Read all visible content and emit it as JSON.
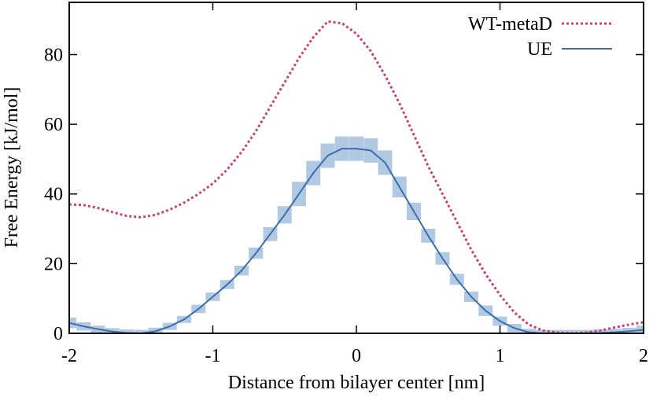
{
  "chart_data": {
    "type": "line",
    "xlabel": "Distance from bilayer center [nm]",
    "ylabel": "Free Energy [kJ/mol]",
    "x": [
      -2,
      -1.9,
      -1.8,
      -1.7,
      -1.6,
      -1.5,
      -1.4,
      -1.3,
      -1.2,
      -1.1,
      -1,
      -0.9,
      -0.8,
      -0.7,
      -0.6,
      -0.5,
      -0.4,
      -0.3,
      -0.2,
      -0.1,
      0,
      0.1,
      0.2,
      0.3,
      0.4,
      0.5,
      0.6,
      0.7,
      0.8,
      0.9,
      1,
      1.1,
      1.2,
      1.3,
      1.4,
      1.5,
      1.6,
      1.7,
      1.8,
      1.9,
      2
    ],
    "series": [
      {
        "name": "WT-metaD",
        "color": "#c8436e",
        "style": "dotted",
        "values": [
          37,
          36.8,
          36,
          34.8,
          33.7,
          33.3,
          34,
          35.5,
          37.5,
          40,
          43,
          47,
          52,
          58,
          65,
          72,
          79,
          85,
          89.5,
          89,
          86,
          81,
          74,
          66,
          57,
          48,
          40,
          32,
          24,
          17,
          11,
          6,
          2.5,
          0.8,
          0.2,
          0,
          0.2,
          0.8,
          1.7,
          2.5,
          3.2
        ]
      },
      {
        "name": "UE",
        "color": "#3c6fa8",
        "style": "solid",
        "error_color": "#a9c3e0",
        "values": [
          3,
          2,
          1.2,
          0.5,
          0.1,
          0,
          0.6,
          2,
          4,
          7,
          10.5,
          14,
          18,
          23,
          28.5,
          34,
          40,
          46,
          51,
          53,
          53,
          52.5,
          49,
          42,
          35,
          28,
          21.5,
          15.5,
          10.5,
          6.5,
          3.5,
          1.5,
          0.3,
          0,
          0,
          0,
          0,
          0.1,
          0.3,
          0.6,
          1
        ],
        "errors": [
          1.5,
          1.2,
          1,
          1,
          1,
          1,
          1,
          1,
          1,
          1.2,
          1.2,
          1.3,
          1.4,
          1.6,
          2,
          2.5,
          3.5,
          3.5,
          3.5,
          3.5,
          3.5,
          3.5,
          3.5,
          3,
          2.5,
          2,
          1.8,
          1.6,
          1.5,
          1.5,
          1.3,
          1.2,
          1,
          1,
          1,
          1,
          1,
          1,
          1,
          1,
          1.2
        ]
      }
    ],
    "xlim": [
      -2,
      2
    ],
    "xticks": [
      -2,
      -1,
      0,
      1,
      2
    ],
    "ylim": [
      0,
      95
    ],
    "yticks": [
      0,
      20,
      40,
      60,
      80
    ],
    "legend": "top-right",
    "grid": false
  }
}
